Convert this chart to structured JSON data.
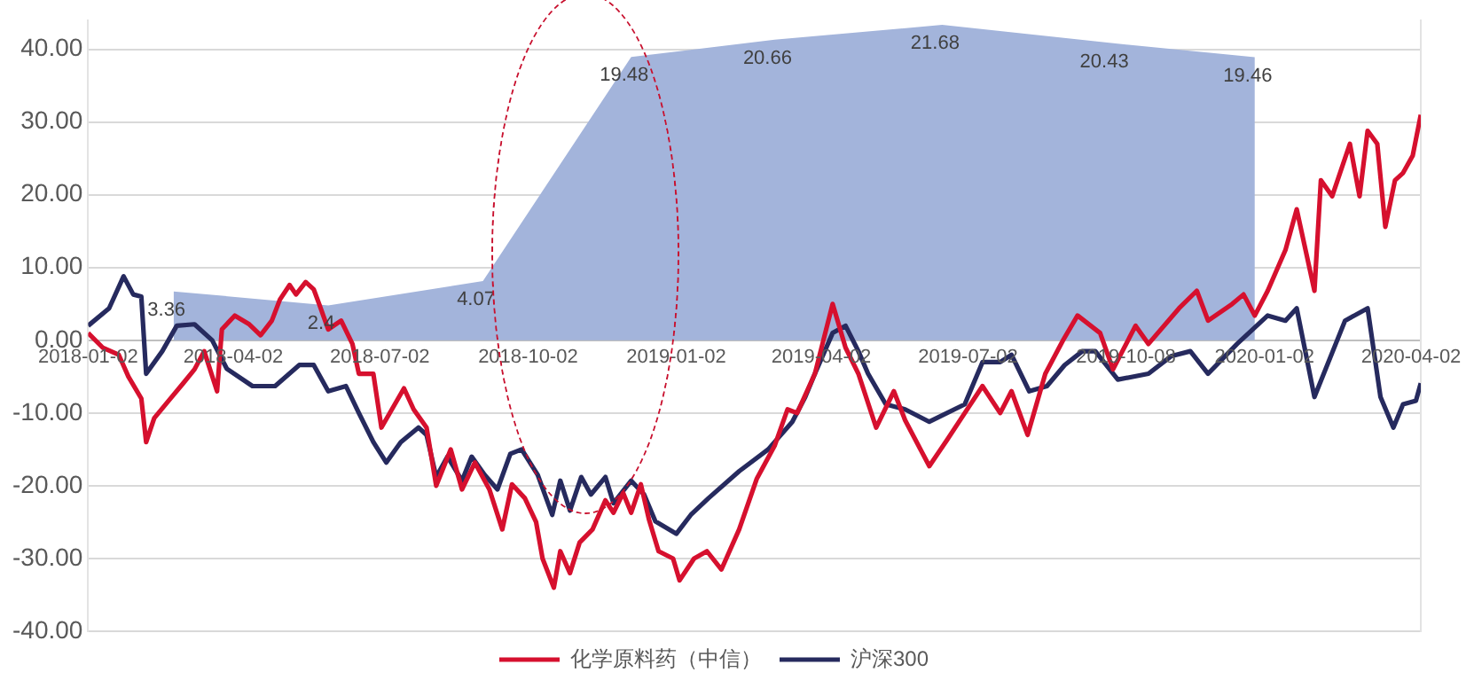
{
  "chart_data": {
    "type": "line",
    "grid": "y",
    "legend": "bottom",
    "marker": "none",
    "line_style": "solid",
    "xlim": [
      "2018-01-02",
      "2020-04-08"
    ],
    "xticks": [
      "2018-01-02",
      "2018-04-02",
      "2018-07-02",
      "2018-10-02",
      "2019-01-02",
      "2019-04-02",
      "2019-07-02",
      "2019-10-08",
      "2020-01-02",
      "2020-04-02"
    ],
    "ylim": [
      -40,
      44
    ],
    "yticks": [
      {
        "value": -40,
        "label": "-40.00"
      },
      {
        "value": -30,
        "label": "-30.00"
      },
      {
        "value": -20,
        "label": "-20.00"
      },
      {
        "value": -10,
        "label": "-10.00"
      },
      {
        "value": 0,
        "label": "0.00"
      },
      {
        "value": 10,
        "label": "10.00"
      },
      {
        "value": 20,
        "label": "20.00"
      },
      {
        "value": 30,
        "label": "30.00"
      },
      {
        "value": 40,
        "label": "40.00"
      }
    ],
    "y2lim": [
      -20,
      22
    ],
    "series": [
      {
        "type": "area",
        "axis": "y2",
        "color": "#a3b4db",
        "data_labels": true,
        "x": [
          "2018-02-24",
          "2018-05-31",
          "2018-09-04",
          "2018-12-05",
          "2019-03-04",
          "2019-06-16",
          "2019-09-29",
          "2019-12-27"
        ],
        "values": [
          3.36,
          2.4,
          4.07,
          19.48,
          20.66,
          21.68,
          20.43,
          19.46
        ]
      },
      {
        "name": "化学原料药（中信）",
        "color": "#d6102e",
        "x": [
          "2018-01-02",
          "2018-01-11",
          "2018-01-21",
          "2018-01-27",
          "2018-02-04",
          "2018-02-07",
          "2018-02-12",
          "2018-02-21",
          "2018-03-02",
          "2018-03-09",
          "2018-03-15",
          "2018-03-23",
          "2018-03-26",
          "2018-04-03",
          "2018-04-12",
          "2018-04-19",
          "2018-04-26",
          "2018-05-01",
          "2018-05-07",
          "2018-05-11",
          "2018-05-17",
          "2018-05-22",
          "2018-05-26",
          "2018-05-31",
          "2018-06-08",
          "2018-06-15",
          "2018-06-19",
          "2018-06-28",
          "2018-07-03",
          "2018-07-17",
          "2018-07-23",
          "2018-07-31",
          "2018-08-06",
          "2018-08-15",
          "2018-08-22",
          "2018-08-30",
          "2018-09-08",
          "2018-09-16",
          "2018-09-22",
          "2018-09-30",
          "2018-10-07",
          "2018-10-11",
          "2018-10-18",
          "2018-10-22",
          "2018-10-28",
          "2018-11-03",
          "2018-11-11",
          "2018-11-19",
          "2018-11-24",
          "2018-11-30",
          "2018-12-05",
          "2018-12-11",
          "2018-12-16",
          "2018-12-22",
          "2018-12-31",
          "2019-01-04",
          "2019-01-13",
          "2019-01-21",
          "2019-01-30",
          "2019-02-10",
          "2019-02-21",
          "2019-03-04",
          "2019-03-12",
          "2019-03-18",
          "2019-03-29",
          "2019-04-09",
          "2019-04-17",
          "2019-04-25",
          "2019-05-06",
          "2019-05-17",
          "2019-05-24",
          "2019-06-08",
          "2019-06-19",
          "2019-06-30",
          "2019-07-11",
          "2019-07-22",
          "2019-07-29",
          "2019-08-08",
          "2019-08-19",
          "2019-08-30",
          "2019-09-08",
          "2019-09-22",
          "2019-09-30",
          "2019-10-14",
          "2019-10-22",
          "2019-11-10",
          "2019-11-21",
          "2019-11-28",
          "2019-12-13",
          "2019-12-20",
          "2019-12-27",
          "2020-01-04",
          "2020-01-15",
          "2020-01-22",
          "2020-02-02",
          "2020-02-06",
          "2020-02-13",
          "2020-02-24",
          "2020-03-01",
          "2020-03-06",
          "2020-03-12",
          "2020-03-17",
          "2020-03-23",
          "2020-03-28",
          "2020-04-03",
          "2020-04-08"
        ],
        "values": [
          1,
          -1,
          -2,
          -5,
          -8,
          -14,
          -10.7,
          -8.3,
          -5.9,
          -4,
          -1.5,
          -7,
          1.5,
          3.4,
          2.2,
          0.7,
          2.7,
          5.6,
          7.6,
          6.3,
          8,
          7,
          4.6,
          1.5,
          2.7,
          -0.5,
          -4.6,
          -4.6,
          -12,
          -6.6,
          -9.5,
          -12,
          -20,
          -15,
          -20.5,
          -16.8,
          -20.5,
          -26,
          -19.8,
          -21.7,
          -25,
          -30,
          -34,
          -29,
          -32,
          -27.8,
          -26,
          -22,
          -23.7,
          -21,
          -23.7,
          -19.8,
          -24.6,
          -29,
          -30,
          -33,
          -30,
          -29,
          -31.5,
          -26,
          -19,
          -14.5,
          -9.5,
          -10,
          -4.6,
          5,
          -1,
          -4.6,
          -12,
          -7,
          -11,
          -17.3,
          -13.7,
          -10,
          -6.3,
          -10,
          -7,
          -13,
          -4.6,
          0,
          3.4,
          1,
          -4,
          2,
          -0.5,
          4.4,
          6.8,
          2.7,
          5,
          6.3,
          3.4,
          6.8,
          12.4,
          18,
          6.8,
          22,
          19.8,
          27,
          19.8,
          28.8,
          27,
          15.6,
          22,
          23,
          25.4,
          31
        ]
      },
      {
        "name": "沪深300",
        "color": "#262a5e",
        "x": [
          "2018-01-02",
          "2018-01-15",
          "2018-01-24",
          "2018-01-30",
          "2018-02-04",
          "2018-02-07",
          "2018-02-17",
          "2018-02-26",
          "2018-03-09",
          "2018-03-20",
          "2018-03-29",
          "2018-04-14",
          "2018-04-28",
          "2018-05-13",
          "2018-05-22",
          "2018-05-31",
          "2018-06-11",
          "2018-06-19",
          "2018-06-28",
          "2018-07-06",
          "2018-07-15",
          "2018-07-26",
          "2018-07-31",
          "2018-08-06",
          "2018-08-13",
          "2018-08-22",
          "2018-08-28",
          "2018-09-05",
          "2018-09-13",
          "2018-09-21",
          "2018-09-28",
          "2018-10-08",
          "2018-10-17",
          "2018-10-22",
          "2018-10-28",
          "2018-11-04",
          "2018-11-10",
          "2018-11-19",
          "2018-11-24",
          "2018-12-05",
          "2018-12-13",
          "2018-12-20",
          "2019-01-02",
          "2019-01-11",
          "2019-01-22",
          "2019-02-10",
          "2019-02-28",
          "2019-03-15",
          "2019-03-23",
          "2019-03-29",
          "2019-04-09",
          "2019-04-17",
          "2019-04-25",
          "2019-05-01",
          "2019-05-12",
          "2019-05-24",
          "2019-06-08",
          "2019-06-30",
          "2019-07-11",
          "2019-07-22",
          "2019-07-29",
          "2019-08-09",
          "2019-08-20",
          "2019-08-31",
          "2019-09-11",
          "2019-09-19",
          "2019-10-03",
          "2019-10-22",
          "2019-11-05",
          "2019-11-17",
          "2019-11-28",
          "2019-12-16",
          "2020-01-04",
          "2020-01-15",
          "2020-01-22",
          "2020-02-02",
          "2020-02-21",
          "2020-03-06",
          "2020-03-14",
          "2020-03-22",
          "2020-03-28",
          "2020-04-05",
          "2020-04-08"
        ],
        "values": [
          2,
          4.4,
          8.8,
          6.3,
          6,
          -4.6,
          -1.5,
          2,
          2.2,
          0,
          -3.9,
          -6.3,
          -6.3,
          -3.4,
          -3.4,
          -7,
          -6.3,
          -10,
          -14,
          -16.8,
          -14,
          -12,
          -13,
          -18.8,
          -16,
          -19.3,
          -16,
          -18.5,
          -20.5,
          -15.6,
          -15,
          -18.5,
          -24,
          -19.3,
          -23.4,
          -18.8,
          -21.2,
          -18.8,
          -22.4,
          -19.3,
          -21.2,
          -24.9,
          -26.6,
          -24,
          -21.7,
          -18,
          -15,
          -11.2,
          -7.8,
          -4.6,
          1,
          2,
          -1.5,
          -4.6,
          -8.8,
          -9.5,
          -11.2,
          -8.8,
          -3,
          -3,
          -2,
          -7,
          -6.3,
          -3.4,
          -1.5,
          -1.5,
          -5.4,
          -4.6,
          -2.2,
          -1.5,
          -4.6,
          -0.5,
          3.4,
          2.7,
          4.4,
          -7.8,
          2.7,
          4.4,
          -7.8,
          -12,
          -8.8,
          -8.3,
          -5.9
        ]
      }
    ]
  }
}
